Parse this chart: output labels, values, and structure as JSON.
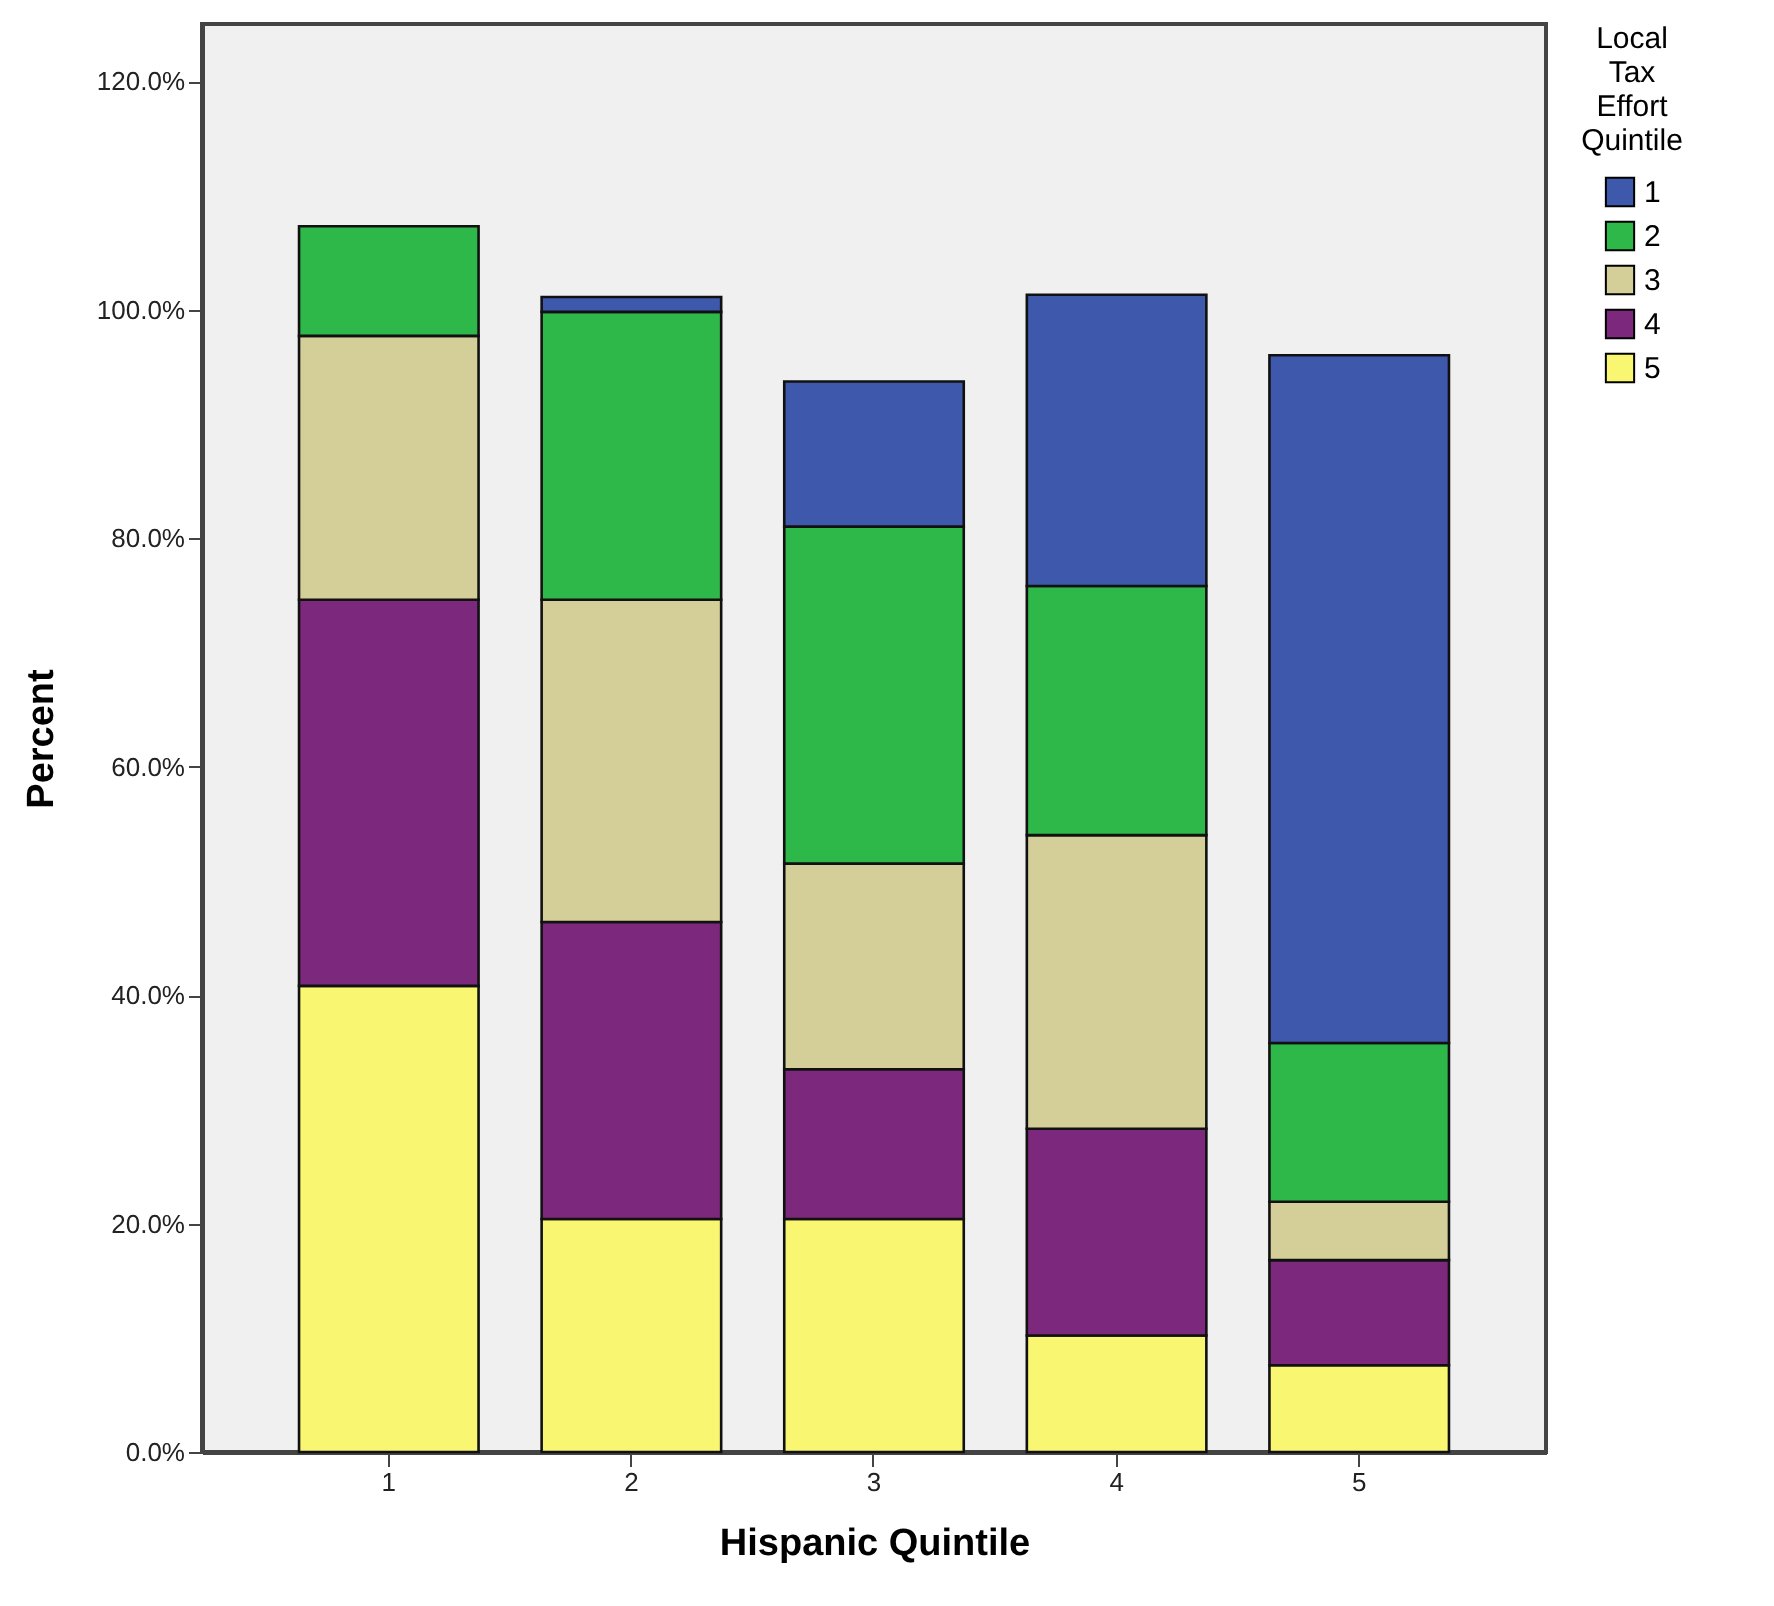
{
  "chart_data": {
    "type": "bar",
    "stacked": true,
    "xlabel": "Hispanic Quintile",
    "ylabel": "Percent",
    "legend_title": "Local Tax Effort Quintile",
    "legend": "top right",
    "grid": false,
    "categories": [
      "1",
      "2",
      "3",
      "4",
      "5"
    ],
    "series": [
      {
        "name": "5",
        "color": "#f9f671",
        "values": [
          40.8,
          20.4,
          20.4,
          10.2,
          7.6
        ]
      },
      {
        "name": "4",
        "color": "#7c287c",
        "values": [
          33.8,
          26.0,
          13.1,
          18.1,
          9.2
        ]
      },
      {
        "name": "3",
        "color": "#d4cf98",
        "values": [
          23.1,
          28.2,
          18.0,
          25.7,
          5.1
        ]
      },
      {
        "name": "2",
        "color": "#2fb84a",
        "values": [
          9.6,
          25.2,
          29.5,
          21.8,
          13.9
        ]
      },
      {
        "name": "1",
        "color": "#3e58ac",
        "values": [
          null,
          1.3,
          12.7,
          25.5,
          60.2
        ]
      }
    ],
    "ylim": [
      0,
      125
    ],
    "yticks": [
      {
        "value": 0,
        "label": "0.0%"
      },
      {
        "value": 20,
        "label": "20.0%"
      },
      {
        "value": 40,
        "label": "40.0%"
      },
      {
        "value": 60,
        "label": "60.0%"
      },
      {
        "value": 80,
        "label": "80.0%"
      },
      {
        "value": 100,
        "label": "100.0%"
      },
      {
        "value": 120,
        "label": "120.0%"
      }
    ]
  }
}
